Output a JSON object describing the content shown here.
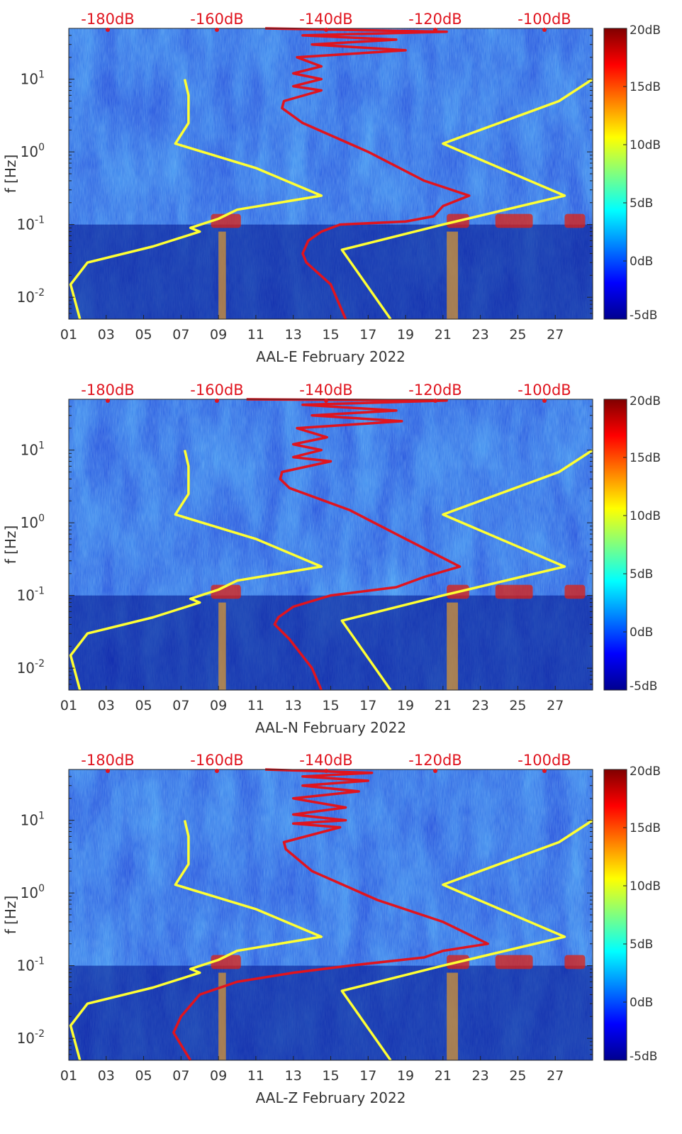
{
  "figure": {
    "description_colors": {
      "model_curve_1": "#ffff33",
      "model_curve_2": "#e0141e",
      "db_scale_text": "#e0141e"
    }
  },
  "chart_data": [
    {
      "type": "heatmap",
      "station": "AAL-E",
      "xlabel": "AAL-E February 2022",
      "ylabel": "f [Hz]",
      "xlim": [
        1,
        29
      ],
      "ylim": [
        0.005,
        50
      ],
      "yscale": "log",
      "x_ticks": [
        "01",
        "03",
        "05",
        "07",
        "09",
        "11",
        "13",
        "15",
        "17",
        "19",
        "21",
        "23",
        "25",
        "27"
      ],
      "y_ticks": [
        {
          "value": 0.01,
          "base": "10",
          "exp": "-2"
        },
        {
          "value": 0.1,
          "base": "10",
          "exp": "-1"
        },
        {
          "value": 1,
          "base": "10",
          "exp": "0"
        },
        {
          "value": 10,
          "base": "10",
          "exp": "1"
        }
      ],
      "top_axis_labels": [
        "-180dB",
        "-160dB",
        "-140dB",
        "-120dB",
        "-100dB"
      ],
      "colorbar": {
        "min": -5,
        "max": 20,
        "ticks": [
          "20dB",
          "15dB",
          "10dB",
          "5dB",
          "0dB",
          "-5dB"
        ]
      },
      "series": [
        {
          "name": "yellow curve (noise model, left)",
          "color": "#ffff33",
          "points": [
            [
              7.2,
              10
            ],
            [
              7.4,
              6
            ],
            [
              7.4,
              2.5
            ],
            [
              6.7,
              1.3
            ],
            [
              11.0,
              0.6
            ],
            [
              14.5,
              0.25
            ],
            [
              10.0,
              0.16
            ],
            [
              9.0,
              0.12
            ],
            [
              7.5,
              0.09
            ],
            [
              8.0,
              0.08
            ],
            [
              5.5,
              0.05
            ],
            [
              2.0,
              0.03
            ],
            [
              1.1,
              0.015
            ],
            [
              1.6,
              0.005
            ]
          ]
        },
        {
          "name": "yellow curve (noise model, right)",
          "color": "#ffff33",
          "points": [
            [
              29.0,
              10
            ],
            [
              27.2,
              5
            ],
            [
              21.0,
              1.3
            ],
            [
              27.5,
              0.25
            ],
            [
              21.0,
              0.1
            ],
            [
              15.6,
              0.045
            ],
            [
              18.2,
              0.005
            ]
          ]
        },
        {
          "name": "red curve (PSD)",
          "color": "#e0141e",
          "points": [
            [
              11.5,
              50
            ],
            [
              21.2,
              45
            ],
            [
              13.5,
              40
            ],
            [
              18.5,
              35
            ],
            [
              14.0,
              30
            ],
            [
              19.0,
              25
            ],
            [
              13.2,
              20
            ],
            [
              14.5,
              15
            ],
            [
              13.0,
              12
            ],
            [
              14.5,
              10
            ],
            [
              13.0,
              8
            ],
            [
              14.5,
              7
            ],
            [
              12.5,
              5
            ],
            [
              12.4,
              4
            ],
            [
              13.5,
              2.5
            ],
            [
              17.0,
              1.0
            ],
            [
              20.0,
              0.4
            ],
            [
              22.4,
              0.25
            ],
            [
              21.0,
              0.18
            ],
            [
              20.5,
              0.13
            ],
            [
              19.0,
              0.11
            ],
            [
              15.5,
              0.1
            ],
            [
              14.5,
              0.08
            ],
            [
              13.8,
              0.06
            ],
            [
              13.5,
              0.04
            ],
            [
              13.7,
              0.03
            ],
            [
              15.0,
              0.015
            ],
            [
              15.8,
              0.005
            ]
          ]
        }
      ]
    },
    {
      "type": "heatmap",
      "station": "AAL-N",
      "xlabel": "AAL-N February 2022",
      "ylabel": "f [Hz]",
      "xlim": [
        1,
        29
      ],
      "ylim": [
        0.005,
        50
      ],
      "yscale": "log",
      "x_ticks": [
        "01",
        "03",
        "05",
        "07",
        "09",
        "11",
        "13",
        "15",
        "17",
        "19",
        "21",
        "23",
        "25",
        "27"
      ],
      "y_ticks": [
        {
          "value": 0.01,
          "base": "10",
          "exp": "-2"
        },
        {
          "value": 0.1,
          "base": "10",
          "exp": "-1"
        },
        {
          "value": 1,
          "base": "10",
          "exp": "0"
        },
        {
          "value": 10,
          "base": "10",
          "exp": "1"
        }
      ],
      "top_axis_labels": [
        "-180dB",
        "-160dB",
        "-140dB",
        "-120dB",
        "-100dB"
      ],
      "colorbar": {
        "min": -5,
        "max": 20,
        "ticks": [
          "20dB",
          "15dB",
          "10dB",
          "5dB",
          "0dB",
          "-5dB"
        ]
      },
      "series": [
        {
          "name": "yellow curve (noise model, left)",
          "color": "#ffff33",
          "points": [
            [
              7.2,
              10
            ],
            [
              7.4,
              6
            ],
            [
              7.4,
              2.5
            ],
            [
              6.7,
              1.3
            ],
            [
              11.0,
              0.6
            ],
            [
              14.5,
              0.25
            ],
            [
              10.0,
              0.16
            ],
            [
              9.0,
              0.12
            ],
            [
              7.5,
              0.09
            ],
            [
              8.0,
              0.08
            ],
            [
              5.5,
              0.05
            ],
            [
              2.0,
              0.03
            ],
            [
              1.1,
              0.015
            ],
            [
              1.6,
              0.005
            ]
          ]
        },
        {
          "name": "yellow curve (noise model, right)",
          "color": "#ffff33",
          "points": [
            [
              29.0,
              10
            ],
            [
              27.2,
              5
            ],
            [
              21.0,
              1.3
            ],
            [
              27.5,
              0.25
            ],
            [
              21.0,
              0.1
            ],
            [
              15.6,
              0.045
            ],
            [
              18.2,
              0.005
            ]
          ]
        },
        {
          "name": "red curve (PSD)",
          "color": "#e0141e",
          "points": [
            [
              10.5,
              50
            ],
            [
              21.2,
              48
            ],
            [
              13.5,
              42
            ],
            [
              18.5,
              35
            ],
            [
              14.0,
              30
            ],
            [
              18.8,
              25
            ],
            [
              13.2,
              20
            ],
            [
              14.8,
              15
            ],
            [
              13.0,
              12
            ],
            [
              14.5,
              10
            ],
            [
              13.0,
              8
            ],
            [
              15.0,
              7
            ],
            [
              12.4,
              5
            ],
            [
              12.3,
              4
            ],
            [
              12.8,
              3
            ],
            [
              16.0,
              1.5
            ],
            [
              19.0,
              0.6
            ],
            [
              21.9,
              0.25
            ],
            [
              20.0,
              0.18
            ],
            [
              18.5,
              0.13
            ],
            [
              15.0,
              0.1
            ],
            [
              13.0,
              0.07
            ],
            [
              12.2,
              0.05
            ],
            [
              12.0,
              0.04
            ],
            [
              12.8,
              0.025
            ],
            [
              14.0,
              0.01
            ],
            [
              14.5,
              0.005
            ]
          ]
        }
      ]
    },
    {
      "type": "heatmap",
      "station": "AAL-Z",
      "xlabel": "AAL-Z February 2022",
      "ylabel": "f [Hz]",
      "xlim": [
        1,
        29
      ],
      "ylim": [
        0.005,
        50
      ],
      "yscale": "log",
      "x_ticks": [
        "01",
        "03",
        "05",
        "07",
        "09",
        "11",
        "13",
        "15",
        "17",
        "19",
        "21",
        "23",
        "25",
        "27"
      ],
      "y_ticks": [
        {
          "value": 0.01,
          "base": "10",
          "exp": "-2"
        },
        {
          "value": 0.1,
          "base": "10",
          "exp": "-1"
        },
        {
          "value": 1,
          "base": "10",
          "exp": "0"
        },
        {
          "value": 10,
          "base": "10",
          "exp": "1"
        }
      ],
      "top_axis_labels": [
        "-180dB",
        "-160dB",
        "-140dB",
        "-120dB",
        "-100dB"
      ],
      "colorbar": {
        "min": -5,
        "max": 20,
        "ticks": [
          "20dB",
          "15dB",
          "10dB",
          "5dB",
          "0dB",
          "-5dB"
        ]
      },
      "series": [
        {
          "name": "yellow curve (noise model, left)",
          "color": "#ffff33",
          "points": [
            [
              7.2,
              10
            ],
            [
              7.4,
              6
            ],
            [
              7.4,
              2.5
            ],
            [
              6.7,
              1.3
            ],
            [
              11.0,
              0.6
            ],
            [
              14.5,
              0.25
            ],
            [
              10.0,
              0.16
            ],
            [
              9.0,
              0.12
            ],
            [
              7.5,
              0.09
            ],
            [
              8.0,
              0.08
            ],
            [
              5.5,
              0.05
            ],
            [
              2.0,
              0.03
            ],
            [
              1.1,
              0.015
            ],
            [
              1.6,
              0.005
            ]
          ]
        },
        {
          "name": "yellow curve (noise model, right)",
          "color": "#ffff33",
          "points": [
            [
              29.0,
              10
            ],
            [
              27.2,
              5
            ],
            [
              21.0,
              1.3
            ],
            [
              27.5,
              0.25
            ],
            [
              21.0,
              0.1
            ],
            [
              15.6,
              0.045
            ],
            [
              18.2,
              0.005
            ]
          ]
        },
        {
          "name": "red curve (PSD)",
          "color": "#e0141e",
          "points": [
            [
              11.5,
              50
            ],
            [
              17.2,
              45
            ],
            [
              13.5,
              40
            ],
            [
              17.0,
              35
            ],
            [
              13.5,
              30
            ],
            [
              16.5,
              25
            ],
            [
              13.0,
              20
            ],
            [
              15.8,
              15
            ],
            [
              13.0,
              12
            ],
            [
              15.8,
              10
            ],
            [
              13.0,
              9
            ],
            [
              15.5,
              8
            ],
            [
              12.5,
              5
            ],
            [
              12.6,
              4
            ],
            [
              14.0,
              2.0
            ],
            [
              17.5,
              0.8
            ],
            [
              21.0,
              0.4
            ],
            [
              23.4,
              0.2
            ],
            [
              21.0,
              0.16
            ],
            [
              20.0,
              0.13
            ],
            [
              16.0,
              0.1
            ],
            [
              13.0,
              0.08
            ],
            [
              10.0,
              0.06
            ],
            [
              8.0,
              0.04
            ],
            [
              7.0,
              0.02
            ],
            [
              6.6,
              0.012
            ],
            [
              7.5,
              0.005
            ]
          ]
        }
      ]
    }
  ]
}
